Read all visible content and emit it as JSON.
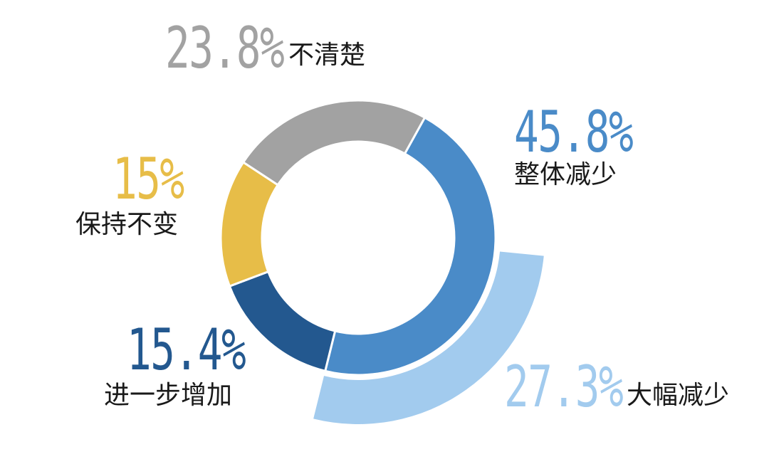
{
  "chart_data": {
    "type": "pie",
    "variant": "donut",
    "categories": [
      "整体减少",
      "进一步增加",
      "保持不变",
      "不清楚"
    ],
    "values": [
      45.8,
      15.4,
      15.0,
      23.8
    ],
    "value_labels": [
      "45.8%",
      "15.4%",
      "15%",
      "23.8%"
    ],
    "colors": [
      "#4a8bc8",
      "#23588f",
      "#e7bd48",
      "#a2a2a2"
    ],
    "breakdown": {
      "parent": "整体减少",
      "category": "大幅减少",
      "value": 27.3,
      "value_label": "27.3%",
      "color": "#a2cbee"
    },
    "title": "",
    "legend": "none"
  }
}
